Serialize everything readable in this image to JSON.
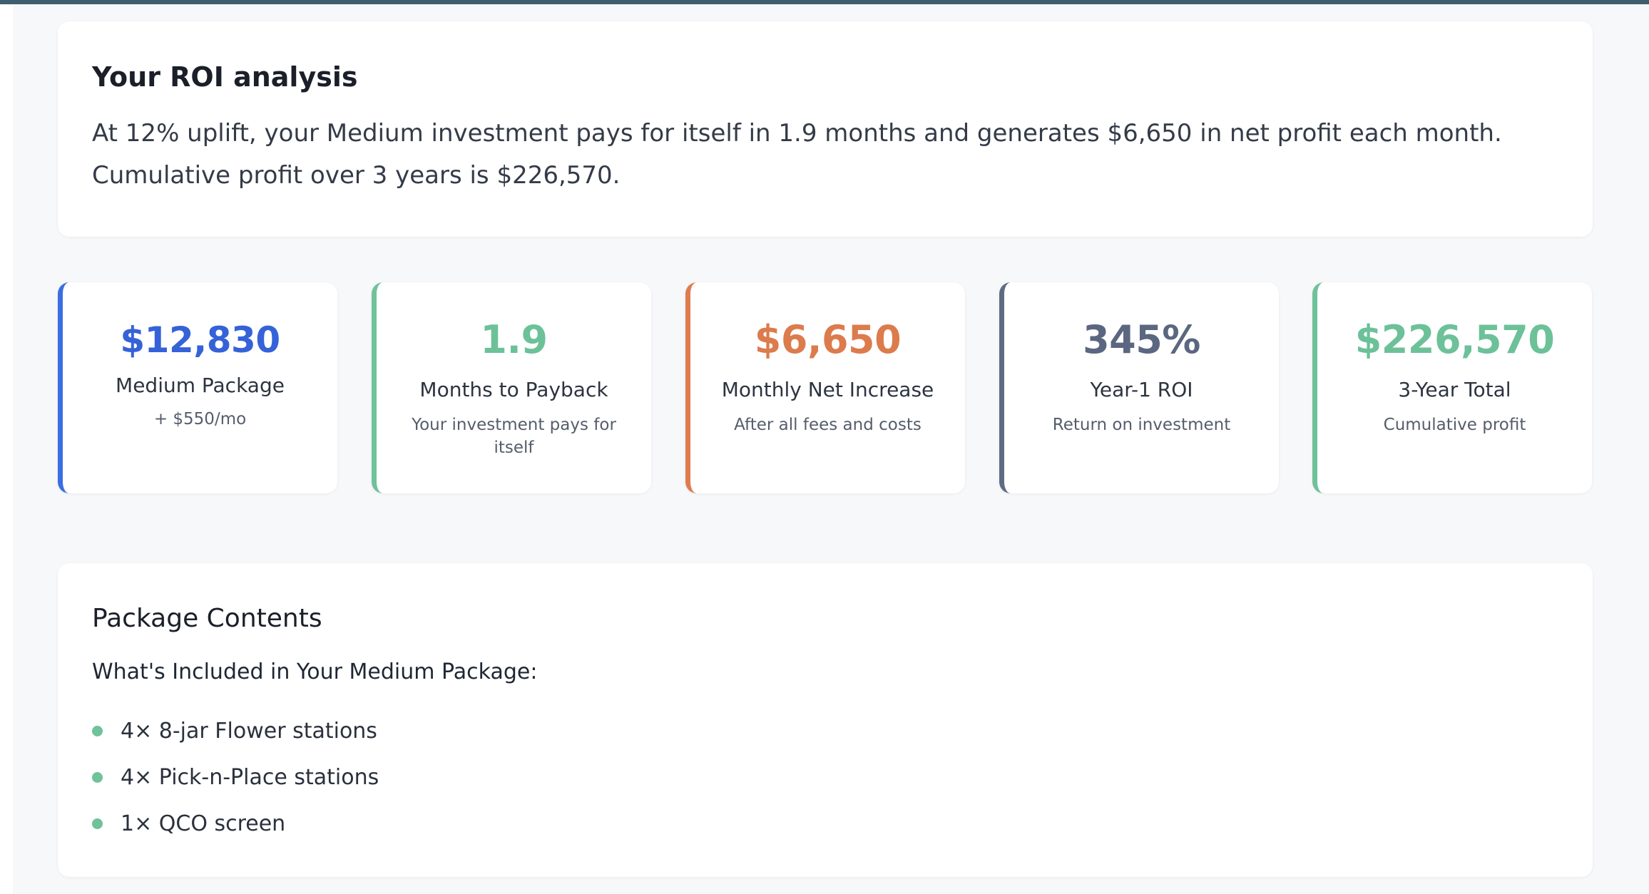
{
  "roi": {
    "title": "Your ROI analysis",
    "summary_line1": "At 12% uplift, your Medium investment pays for itself in 1.9 months and generates $6,650 in net profit each month.",
    "summary_line2": "Cumulative profit over 3 years is $226,570."
  },
  "metrics": [
    {
      "value": "$12,830",
      "label": "Medium Package",
      "sub": "+ $550/mo",
      "color": "#3562d8"
    },
    {
      "value": "1.9",
      "label": "Months to Payback",
      "sub": "Your investment pays for itself",
      "color": "#6cc199"
    },
    {
      "value": "$6,650",
      "label": "Monthly Net Increase",
      "sub": "After all fees and costs",
      "color": "#dc7b4c"
    },
    {
      "value": "345%",
      "label": "Year-1 ROI",
      "sub": "Return on investment",
      "color": "#5b6780"
    },
    {
      "value": "$226,570",
      "label": "3-Year Total",
      "sub": "Cumulative profit",
      "color": "#6cc199"
    }
  ],
  "package": {
    "title": "Package Contents",
    "intro": "What's Included in Your Medium Package:",
    "items": [
      {
        "label": "4× 8-jar Flower stations"
      },
      {
        "label": "4× Pick-n-Place stations"
      },
      {
        "label": "1× QCO screen"
      }
    ]
  }
}
